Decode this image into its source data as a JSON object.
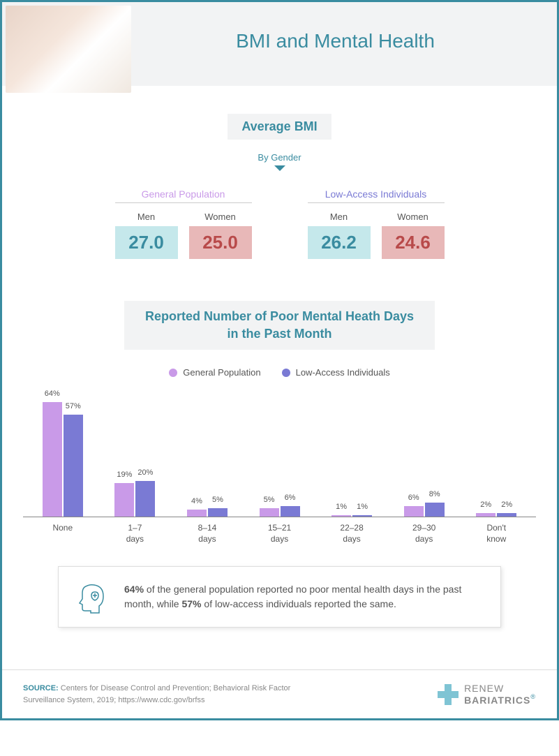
{
  "title": "BMI and Mental Health",
  "colors": {
    "primary": "#3a8ca0",
    "men_bg": "#c5e8eb",
    "men_text": "#3a8ca0",
    "women_bg": "#e8b8b8",
    "women_text": "#b84a4a",
    "series1": "#c99ae8",
    "series2": "#7a7ad4",
    "gp_title": "#c99ae8",
    "la_title": "#7a7ad4"
  },
  "bmi": {
    "section_label": "Average BMI",
    "subtitle": "By Gender",
    "groups": [
      {
        "title": "General Population",
        "title_color": "#c99ae8",
        "stats": [
          {
            "label": "Men",
            "value": "27.0",
            "bg": "#c5e8eb",
            "color": "#3a8ca0"
          },
          {
            "label": "Women",
            "value": "25.0",
            "bg": "#e8b8b8",
            "color": "#b84a4a"
          }
        ]
      },
      {
        "title": "Low-Access Individuals",
        "title_color": "#7a7ad4",
        "stats": [
          {
            "label": "Men",
            "value": "26.2",
            "bg": "#c5e8eb",
            "color": "#3a8ca0"
          },
          {
            "label": "Women",
            "value": "24.6",
            "bg": "#e8b8b8",
            "color": "#b84a4a"
          }
        ]
      }
    ]
  },
  "chart": {
    "title_line1": "Reported Number of Poor Mental Heath Days",
    "title_line2": "in the Past Month",
    "legend": [
      {
        "label": "General Population",
        "color": "#c99ae8"
      },
      {
        "label": "Low-Access Individuals",
        "color": "#7a7ad4"
      }
    ],
    "ymax": 70,
    "categories": [
      {
        "label": "None",
        "v1": 64,
        "v2": 57
      },
      {
        "label": "1–7\ndays",
        "v1": 19,
        "v2": 20
      },
      {
        "label": "8–14\ndays",
        "v1": 4,
        "v2": 5
      },
      {
        "label": "15–21\ndays",
        "v1": 5,
        "v2": 6
      },
      {
        "label": "22–28\ndays",
        "v1": 1,
        "v2": 1
      },
      {
        "label": "29–30\ndays",
        "v1": 6,
        "v2": 8
      },
      {
        "label": "Don't\nknow",
        "v1": 2,
        "v2": 2
      }
    ]
  },
  "callout": {
    "pct1": "64%",
    "text1": " of the general population reported no poor mental health days in the past month, while ",
    "pct2": "57%",
    "text2": " of low-access individuals reported the same."
  },
  "footer": {
    "source_label": "SOURCE:",
    "source_text": " Centers for Disease Control and Prevention; Behavioral Risk Factor Surveillance System, 2019; https://www.cdc.gov/brfss",
    "logo_top": "RENEW",
    "logo_bottom": "BARIATRICS",
    "logo_reg": "®"
  }
}
